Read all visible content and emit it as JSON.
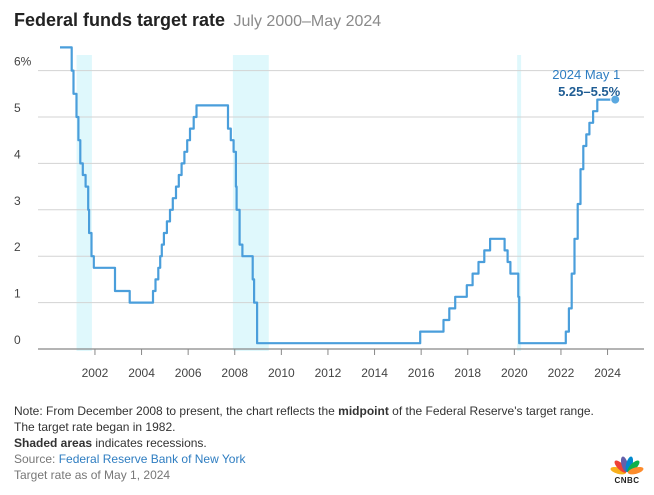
{
  "header": {
    "title": "Federal funds target rate",
    "subtitle": "July 2000–May 2024"
  },
  "chart_data": {
    "type": "line",
    "title": "Federal funds target rate",
    "subtitle": "July 2000–May 2024",
    "xlabel": "",
    "ylabel": "",
    "xlim": [
      2000.5,
      2024.35
    ],
    "ylim": [
      0,
      6.5
    ],
    "x_ticks": [
      2002,
      2004,
      2006,
      2008,
      2010,
      2012,
      2014,
      2016,
      2018,
      2020,
      2022,
      2024
    ],
    "y_ticks": [
      {
        "value": 0,
        "label": "0"
      },
      {
        "value": 1,
        "label": "1"
      },
      {
        "value": 2,
        "label": "2"
      },
      {
        "value": 3,
        "label": "3"
      },
      {
        "value": 4,
        "label": "4"
      },
      {
        "value": 5,
        "label": "5"
      },
      {
        "value": 6,
        "label": "6%"
      }
    ],
    "grid": "horizontal",
    "line_color": "#4a9edb",
    "recession_color": "#dff8fc",
    "recessions": [
      {
        "start": 2001.21,
        "end": 2001.87
      },
      {
        "start": 2007.92,
        "end": 2009.46
      },
      {
        "start": 2020.12,
        "end": 2020.29
      }
    ],
    "series": [
      {
        "points": [
          [
            2000.5,
            6.5
          ],
          [
            2001.0,
            6.5
          ],
          [
            2001.0,
            6.0
          ],
          [
            2001.08,
            6.0
          ],
          [
            2001.08,
            5.5
          ],
          [
            2001.21,
            5.5
          ],
          [
            2001.21,
            5.0
          ],
          [
            2001.29,
            5.0
          ],
          [
            2001.29,
            4.5
          ],
          [
            2001.37,
            4.5
          ],
          [
            2001.37,
            4.0
          ],
          [
            2001.48,
            4.0
          ],
          [
            2001.48,
            3.75
          ],
          [
            2001.6,
            3.75
          ],
          [
            2001.6,
            3.5
          ],
          [
            2001.71,
            3.5
          ],
          [
            2001.71,
            3.0
          ],
          [
            2001.75,
            3.0
          ],
          [
            2001.75,
            2.5
          ],
          [
            2001.85,
            2.5
          ],
          [
            2001.85,
            2.0
          ],
          [
            2001.95,
            2.0
          ],
          [
            2001.95,
            1.75
          ],
          [
            2002.86,
            1.75
          ],
          [
            2002.86,
            1.25
          ],
          [
            2003.49,
            1.25
          ],
          [
            2003.49,
            1.0
          ],
          [
            2004.49,
            1.0
          ],
          [
            2004.49,
            1.25
          ],
          [
            2004.6,
            1.25
          ],
          [
            2004.6,
            1.5
          ],
          [
            2004.72,
            1.5
          ],
          [
            2004.72,
            1.75
          ],
          [
            2004.8,
            1.75
          ],
          [
            2004.8,
            2.0
          ],
          [
            2004.87,
            2.0
          ],
          [
            2004.87,
            2.25
          ],
          [
            2004.96,
            2.25
          ],
          [
            2004.96,
            2.5
          ],
          [
            2005.09,
            2.5
          ],
          [
            2005.09,
            2.75
          ],
          [
            2005.22,
            2.75
          ],
          [
            2005.22,
            3.0
          ],
          [
            2005.34,
            3.0
          ],
          [
            2005.34,
            3.25
          ],
          [
            2005.48,
            3.25
          ],
          [
            2005.48,
            3.5
          ],
          [
            2005.6,
            3.5
          ],
          [
            2005.6,
            3.75
          ],
          [
            2005.72,
            3.75
          ],
          [
            2005.72,
            4.0
          ],
          [
            2005.84,
            4.0
          ],
          [
            2005.84,
            4.25
          ],
          [
            2005.96,
            4.25
          ],
          [
            2005.96,
            4.5
          ],
          [
            2006.08,
            4.5
          ],
          [
            2006.08,
            4.75
          ],
          [
            2006.24,
            4.75
          ],
          [
            2006.24,
            5.0
          ],
          [
            2006.36,
            5.0
          ],
          [
            2006.36,
            5.25
          ],
          [
            2007.71,
            5.25
          ],
          [
            2007.71,
            4.75
          ],
          [
            2007.83,
            4.75
          ],
          [
            2007.83,
            4.5
          ],
          [
            2007.95,
            4.5
          ],
          [
            2007.95,
            4.25
          ],
          [
            2008.05,
            4.25
          ],
          [
            2008.05,
            3.5
          ],
          [
            2008.08,
            3.5
          ],
          [
            2008.08,
            3.0
          ],
          [
            2008.21,
            3.0
          ],
          [
            2008.21,
            2.25
          ],
          [
            2008.33,
            2.25
          ],
          [
            2008.33,
            2.0
          ],
          [
            2008.77,
            2.0
          ],
          [
            2008.77,
            1.5
          ],
          [
            2008.83,
            1.5
          ],
          [
            2008.83,
            1.0
          ],
          [
            2008.96,
            1.0
          ],
          [
            2008.96,
            0.125
          ],
          [
            2015.96,
            0.125
          ],
          [
            2015.96,
            0.375
          ],
          [
            2016.96,
            0.375
          ],
          [
            2016.96,
            0.625
          ],
          [
            2017.21,
            0.625
          ],
          [
            2017.21,
            0.875
          ],
          [
            2017.46,
            0.875
          ],
          [
            2017.46,
            1.125
          ],
          [
            2017.96,
            1.125
          ],
          [
            2017.96,
            1.375
          ],
          [
            2018.21,
            1.375
          ],
          [
            2018.21,
            1.625
          ],
          [
            2018.46,
            1.625
          ],
          [
            2018.46,
            1.875
          ],
          [
            2018.71,
            1.875
          ],
          [
            2018.71,
            2.125
          ],
          [
            2018.96,
            2.125
          ],
          [
            2018.96,
            2.375
          ],
          [
            2019.58,
            2.375
          ],
          [
            2019.58,
            2.125
          ],
          [
            2019.71,
            2.125
          ],
          [
            2019.71,
            1.875
          ],
          [
            2019.83,
            1.875
          ],
          [
            2019.83,
            1.625
          ],
          [
            2020.17,
            1.625
          ],
          [
            2020.17,
            1.125
          ],
          [
            2020.21,
            1.125
          ],
          [
            2020.21,
            0.125
          ],
          [
            2022.21,
            0.125
          ],
          [
            2022.21,
            0.375
          ],
          [
            2022.34,
            0.375
          ],
          [
            2022.34,
            0.875
          ],
          [
            2022.46,
            0.875
          ],
          [
            2022.46,
            1.625
          ],
          [
            2022.58,
            1.625
          ],
          [
            2022.58,
            2.375
          ],
          [
            2022.72,
            2.375
          ],
          [
            2022.72,
            3.125
          ],
          [
            2022.84,
            3.125
          ],
          [
            2022.84,
            3.875
          ],
          [
            2022.96,
            3.875
          ],
          [
            2022.96,
            4.375
          ],
          [
            2023.09,
            4.375
          ],
          [
            2023.09,
            4.625
          ],
          [
            2023.22,
            4.625
          ],
          [
            2023.22,
            4.875
          ],
          [
            2023.38,
            4.875
          ],
          [
            2023.38,
            5.125
          ],
          [
            2023.56,
            5.125
          ],
          [
            2023.56,
            5.375
          ],
          [
            2024.33,
            5.375
          ]
        ]
      }
    ],
    "annotation": {
      "x": 2024.33,
      "y": 5.375,
      "label": "2024 May 1",
      "value_label": "5.25–5.5%"
    }
  },
  "notes": {
    "line1_pre": "Note: From December 2008 to present, the chart reflects the ",
    "line1_bold": "midpoint",
    "line1_post": " of the Federal Reserve's target range. The target rate began in 1982.",
    "shaded_bold": "Shaded areas",
    "shaded_rest": " indicates recessions.",
    "source_label": "Source: ",
    "source_link": "Federal Reserve Bank of New York",
    "as_of": "Target rate as of May 1, 2024"
  },
  "logo": {
    "text": "CNBC",
    "colors": [
      "#f8b01c",
      "#ef4136",
      "#6460aa",
      "#0089cf",
      "#0db14b",
      "#fd8c2c"
    ]
  }
}
